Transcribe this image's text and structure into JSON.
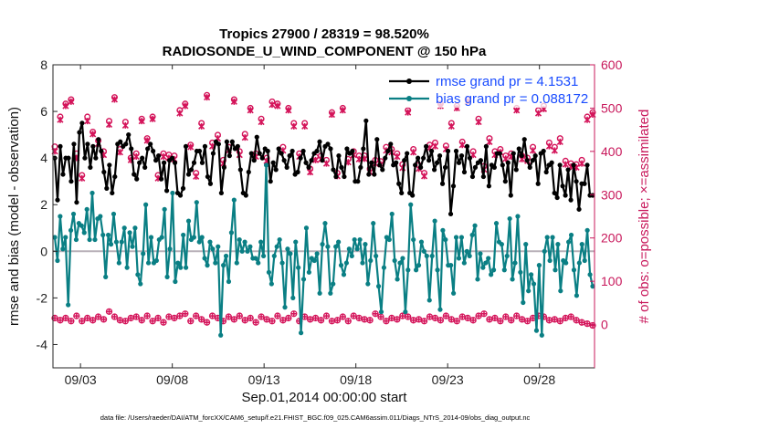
{
  "chart_data": {
    "type": "line",
    "title_line1": "Tropics 27900 / 28319 = 98.520%",
    "title_line2": "RADIOSONDE_U_WIND_COMPONENT @ 150 hPa",
    "xlabel": "Sep.01,2014 00:00:00 start",
    "ylabel": "rmse and bias (model - observation)",
    "y2label": "# of obs: o=possible; ×=assimilated",
    "footer": "data file: /Users/raeder/DAI/ATM_forcXX/CAM6_setup/f.e21.FHIST_BGC.f09_025.CAM6assim.011/Diags_NTrS_2014-09/obs_diag_output.nc",
    "x_range_days": [
      0.5,
      30.0
    ],
    "ylim": [
      -5,
      8
    ],
    "y2lim": [
      -100,
      600
    ],
    "x_ticks": [
      {
        "day": 2,
        "label": "09/03"
      },
      {
        "day": 7,
        "label": "09/08"
      },
      {
        "day": 12,
        "label": "09/13"
      },
      {
        "day": 17,
        "label": "09/18"
      },
      {
        "day": 22,
        "label": "09/23"
      },
      {
        "day": 27,
        "label": "09/28"
      }
    ],
    "y_ticks": [
      "8",
      "6",
      "4",
      "2",
      "0",
      "-2",
      "-4"
    ],
    "y2_ticks": [
      "600",
      "500",
      "400",
      "300",
      "200",
      "100",
      "0"
    ],
    "zero_line": 0,
    "series": [
      {
        "name": "rmse",
        "legend": "rmse grand pr = 4.1531",
        "color": "#000000",
        "values": [
          4.0,
          2.2,
          4.5,
          3.3,
          4.0,
          4.0,
          3.0,
          4.6,
          2.1,
          5.1,
          5.5,
          4.0,
          4.6,
          3.6,
          4.5,
          4.0,
          4.8,
          4.3,
          3.4,
          2.7,
          3.7,
          2.5,
          3.2,
          4.6,
          4.7,
          4.5,
          4.6,
          5.0,
          4.4,
          3.3,
          3.1,
          3.8,
          4.0,
          3.6,
          4.4,
          4.6,
          4.3,
          3.9,
          4.1,
          3.1,
          3.8,
          2.6,
          3.9,
          4.0,
          3.8,
          2.5,
          2.4,
          2.7,
          4.5,
          3.3,
          3.5,
          3.8,
          4.3,
          4.3,
          3.8,
          4.5,
          3.2,
          2.9,
          4.2,
          4.7,
          4.6,
          2.5,
          3.6,
          4.7,
          4.1,
          4.7,
          4.4,
          4.5,
          3.5,
          2.5,
          2.4,
          3.4,
          4.2,
          3.9,
          4.9,
          4.2,
          4.0,
          4.4,
          4.3,
          3.0,
          3.8,
          3.5,
          4.4,
          4.2,
          3.9,
          3.6,
          4.1,
          4.3,
          3.3,
          3.4,
          4.0,
          4.3,
          3.8,
          3.6,
          3.9,
          4.2,
          4.3,
          4.7,
          3.9,
          4.5,
          4.6,
          4.4,
          3.5,
          3.2,
          4.1,
          3.6,
          3.2,
          4.4,
          4.2,
          4.3,
          3.0,
          3.0,
          3.6,
          4.4,
          5.6,
          3.3,
          3.8,
          3.3,
          4.8,
          3.7,
          3.5,
          4.0,
          4.3,
          4.6,
          3.7,
          3.8,
          2.9,
          2.5,
          3.9,
          4.2,
          2.5,
          2.4,
          3.7,
          4.0,
          3.6,
          4.0,
          4.5,
          3.9,
          4.3,
          3.5,
          3.8,
          4.1,
          2.9,
          3.6,
          4.3,
          1.6,
          2.8,
          4.3,
          3.8,
          4.1,
          3.4,
          4.5,
          4.0,
          3.2,
          3.6,
          3.8,
          3.9,
          3.2,
          4.5,
          2.8,
          3.7,
          3.6,
          4.2,
          4.2,
          3.7,
          3.0,
          3.8,
          2.4,
          4.2,
          3.5,
          4.4,
          4.1,
          4.8,
          3.9,
          3.6,
          3.9,
          4.1,
          2.9,
          4.2,
          4.3,
          3.4,
          3.7,
          3.8,
          2.5,
          2.3,
          3.7,
          2.8,
          2.4,
          3.5,
          2.2,
          3.7,
          3.0,
          1.8,
          2.9,
          2.9,
          3.7,
          2.4,
          2.4
        ]
      },
      {
        "name": "bias",
        "legend": "bias grand pr = 0.088172",
        "color": "#0a7f84",
        "values": [
          0.6,
          -0.4,
          1.5,
          0.1,
          0.6,
          -2.3,
          0.9,
          1.6,
          0.5,
          1.2,
          1.1,
          0.8,
          1.8,
          0.5,
          2.5,
          0.5,
          1.4,
          1.5,
          0.7,
          -1.1,
          0.7,
          0.3,
          1.6,
          0.4,
          -0.5,
          0.4,
          1.0,
          -0.7,
          0.8,
          0.2,
          1.0,
          -1.0,
          -1.4,
          -0.1,
          2.0,
          -0.5,
          0.6,
          -0.5,
          -0.4,
          0.5,
          0.6,
          1.8,
          -1.1,
          0.1,
          2.5,
          -1.3,
          -0.5,
          -0.7,
          0.7,
          -0.7,
          1.3,
          0.5,
          0.6,
          2.1,
          0.4,
          0.6,
          -0.3,
          -0.6,
          0.4,
          0.1,
          -0.5,
          0.2,
          -3.6,
          -0.6,
          -0.2,
          -1.3,
          0.8,
          2.2,
          -0.5,
          0.5,
          0.0,
          0.4,
          0.0,
          0.2,
          -0.3,
          -0.3,
          -0.5,
          0.4,
          -0.2,
          3.7,
          -0.9,
          -1.4,
          -0.2,
          0.2,
          0.5,
          -0.5,
          -2.4,
          0.1,
          -0.1,
          -2.0,
          0.4,
          -0.7,
          -3.5,
          -1.2,
          1.0,
          -0.9,
          -0.3,
          -0.4,
          -0.1,
          -1.8,
          0.3,
          1.2,
          0.2,
          -1.8,
          -1.4,
          0.2,
          0.4,
          -0.6,
          -1.0,
          -0.5,
          0.1,
          -0.2,
          0.5,
          0.1,
          0.5,
          -0.5,
          0.3,
          -1.4,
          -0.4,
          1.2,
          -0.2,
          -1.5,
          -2.6,
          -0.7,
          0.6,
          0.5,
          1.6,
          -0.4,
          -1.2,
          -0.5,
          -0.3,
          -2.6,
          -0.8,
          2.0,
          0.5,
          -0.8,
          -0.6,
          0.4,
          0.0,
          -0.2,
          -2.1,
          -0.2,
          1.3,
          -0.8,
          -2.5,
          0.9,
          0.5,
          -0.6,
          -0.6,
          -1.8,
          0.6,
          -0.3,
          0.6,
          -0.5,
          0.0,
          -0.2,
          0.7,
          1.1,
          -1.2,
          -0.1,
          -0.7,
          -0.5,
          -0.3,
          -1.0,
          -0.8,
          1.2,
          0.4,
          0.3,
          -0.8,
          -0.2,
          1.4,
          -1.2,
          -0.5,
          1.5,
          -0.9,
          -2.2,
          0.3,
          -1.7,
          -1.0,
          -1.4,
          -3.4,
          -0.6,
          -3.6,
          0.0,
          0.6,
          -0.4,
          0.6,
          -0.8,
          0.3,
          -1.7,
          -0.4,
          -0.5,
          0.4,
          0.7,
          -0.8,
          -1.9,
          -0.5,
          0.3,
          -0.4,
          0.9,
          -1.0,
          -1.5
        ]
      },
      {
        "name": "possible",
        "axis": "right",
        "color": "#d4145a",
        "values": [
          411,
          480,
          510,
          520,
          395,
          345,
          480,
          445,
          425,
          400,
          470,
          525,
          405,
          468,
          385,
          395,
          475,
          430,
          480,
          345,
          395,
          392,
          390,
          495,
          510,
          415,
          350,
          465,
          530,
          420,
          438,
          380,
          410,
          520,
          400,
          440,
          500,
          395,
          475,
          385,
          515,
          510,
          410,
          500,
          465,
          395,
          465,
          360,
          387,
          390,
          380,
          490,
          350,
          500,
          382,
          400,
          390,
          390,
          360,
          380,
          377,
          410,
          405,
          395,
          370,
          495,
          405,
          368,
          350,
          415,
          420,
          510,
          413,
          465,
          505,
          422,
          520,
          400,
          475,
          366,
          430,
          400,
          405,
          390,
          395,
          500,
          390,
          385,
          410,
          495,
          505,
          420,
          410,
          430,
          378,
          372,
          370,
          380,
          480,
          490
        ]
      },
      {
        "name": "assimilated",
        "axis": "right",
        "color": "#d4145a",
        "values": [
          400,
          473,
          505,
          515,
          385,
          338,
          470,
          440,
          418,
          392,
          462,
          520,
          398,
          460,
          380,
          388,
          470,
          425,
          475,
          338,
          388,
          385,
          382,
          488,
          505,
          410,
          342,
          458,
          525,
          412,
          430,
          372,
          402,
          515,
          392,
          432,
          495,
          388,
          468,
          378,
          508,
          505,
          402,
          495,
          458,
          388,
          458,
          352,
          380,
          382,
          372,
          485,
          343,
          495,
          375,
          392,
          382,
          383,
          352,
          372,
          370,
          402,
          398,
          388,
          362,
          490,
          398,
          360,
          343,
          408,
          412,
          505,
          405,
          458,
          500,
          415,
          515,
          392,
          468,
          358,
          422,
          392,
          398,
          383,
          388,
          495,
          382,
          378,
          402,
          488,
          498,
          412,
          402,
          422,
          370,
          365,
          363,
          372,
          473,
          485
        ]
      },
      {
        "name": "possible_low",
        "axis": "right",
        "color": "#d4145a",
        "values": [
          15,
          10,
          15,
          8,
          20,
          8,
          15,
          10,
          18,
          12,
          30,
          18,
          10,
          8,
          15,
          18,
          10,
          20,
          8,
          15,
          5,
          18,
          15,
          20,
          25,
          8,
          20,
          12,
          5,
          20,
          15,
          8,
          18,
          12,
          20,
          10,
          15,
          5,
          18,
          12,
          8,
          20,
          10,
          15,
          25,
          8,
          18,
          12,
          15,
          10,
          20,
          8,
          10,
          18,
          8,
          20,
          15,
          12,
          10,
          25,
          18,
          8,
          15,
          12,
          20,
          18,
          10,
          12,
          8,
          18,
          15,
          10,
          20,
          12,
          8,
          18,
          15,
          10,
          20,
          25,
          12,
          15,
          8,
          18,
          10,
          20,
          12,
          8,
          15,
          20,
          18,
          10,
          12,
          8,
          15,
          18,
          10,
          5,
          2,
          -2
        ]
      }
    ]
  }
}
